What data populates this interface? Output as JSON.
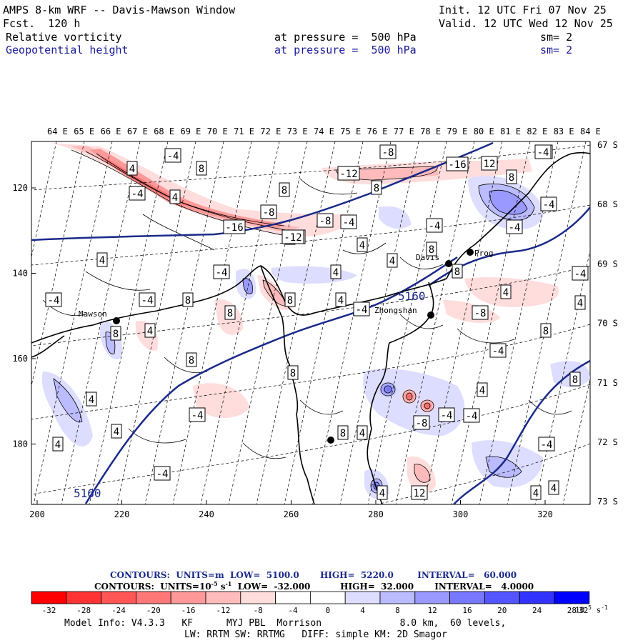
{
  "header": {
    "title": "AMPS 8-km WRF -- Davis-Mawson Window",
    "init": "Init. 12 UTC Fri 07 Nov 25",
    "fcst": "Fcst.  120 h",
    "valid": "Valid. 12 UTC Wed 12 Nov 25",
    "field1_name": "Relative vorticity",
    "field1_level": "at pressure =  500 hPa",
    "field1_sm": "sm= 2",
    "field2_name": "Geopotential height",
    "field2_level": "at pressure =  500 hPa",
    "field2_sm": "sm= 2"
  },
  "map": {
    "lon_labels": [
      "64 E",
      "65 E",
      "66 E",
      "67 E",
      "68 E",
      "69 E",
      "70 E",
      "71 E",
      "72 E",
      "73 E",
      "74 E",
      "75 E",
      "76 E",
      "77 E",
      "78 E",
      "79 E",
      "80 E",
      "81 E",
      "82 E",
      "83 E",
      "84 E"
    ],
    "lat_labels": [
      "67 S",
      "68 S",
      "69 S",
      "70 S",
      "71 S",
      "72 S",
      "73 S"
    ],
    "x_ticks": [
      "200",
      "220",
      "240",
      "260",
      "280",
      "300",
      "320"
    ],
    "y_ticks": [
      "120",
      "140",
      "160",
      "180"
    ],
    "stations": [
      "Mawson",
      "Davis",
      "Zhongshan",
      "Prog"
    ],
    "height_contour_labels": [
      "5160",
      "5160"
    ],
    "vorticity_labels": [
      "-4",
      "4",
      "8",
      "-8",
      "-12",
      "-16",
      "12",
      "4",
      "-4",
      "8",
      "4",
      "-4",
      "8",
      "-8",
      "4",
      "-4",
      "8",
      "4",
      "-4",
      "-4",
      "-4",
      "4",
      "8",
      "4",
      "-4",
      "4",
      "4",
      "8",
      "-4",
      "-4",
      "8",
      "4",
      "-4",
      "8",
      "8",
      "4",
      "4",
      "-4",
      "8",
      "4",
      "8",
      "8",
      "-4",
      "8",
      "4",
      "4",
      "8",
      "4",
      "4",
      "-4",
      "-8",
      "-4",
      "-4",
      "-4",
      "-4",
      "8",
      "4",
      "12",
      "4",
      "4",
      "4",
      "-8",
      "-12",
      "-16",
      "-8",
      "-12",
      "-4",
      "8"
    ]
  },
  "contour_info": {
    "line1": "CONTOURS:  UNITS=m  LOW=  5100.0       HIGH=  5220.0        INTERVAL=   60.000",
    "line2": "CONTOURS:  UNITS=10",
    "line2_exp": "-5",
    "line2_rest": " s",
    "line2_exp2": "-1",
    "line2_tail": "  LOW=  -32.000          HIGH=  32.000       INTERVAL=   4.0000"
  },
  "colorbar": {
    "labels": [
      "-32",
      "-28",
      "-24",
      "-20",
      "-16",
      "-12",
      "-8",
      "-4",
      "0",
      "4",
      "8",
      "12",
      "16",
      "20",
      "24",
      "28",
      "32"
    ],
    "unit": "10",
    "unit_exp": "-5",
    "unit_tail": " s",
    "unit_exp2": "-1",
    "colors": [
      "#ff0000",
      "#ff3333",
      "#ff5555",
      "#ff7777",
      "#ff9999",
      "#ffbbbb",
      "#ffdddd",
      "#ffffff",
      "#ffffff",
      "#ddddff",
      "#bbbbff",
      "#9999ff",
      "#7777ff",
      "#5555ff",
      "#3333ff",
      "#0000ff"
    ]
  },
  "footer": {
    "line1": "Model Info: V4.3.3   KF      MYJ PBL  Morrison              8.0 km,  60 levels,",
    "line2": "LW: RRTM SW: RRTMG   DIFF: simple KM: 2D Smagor"
  }
}
